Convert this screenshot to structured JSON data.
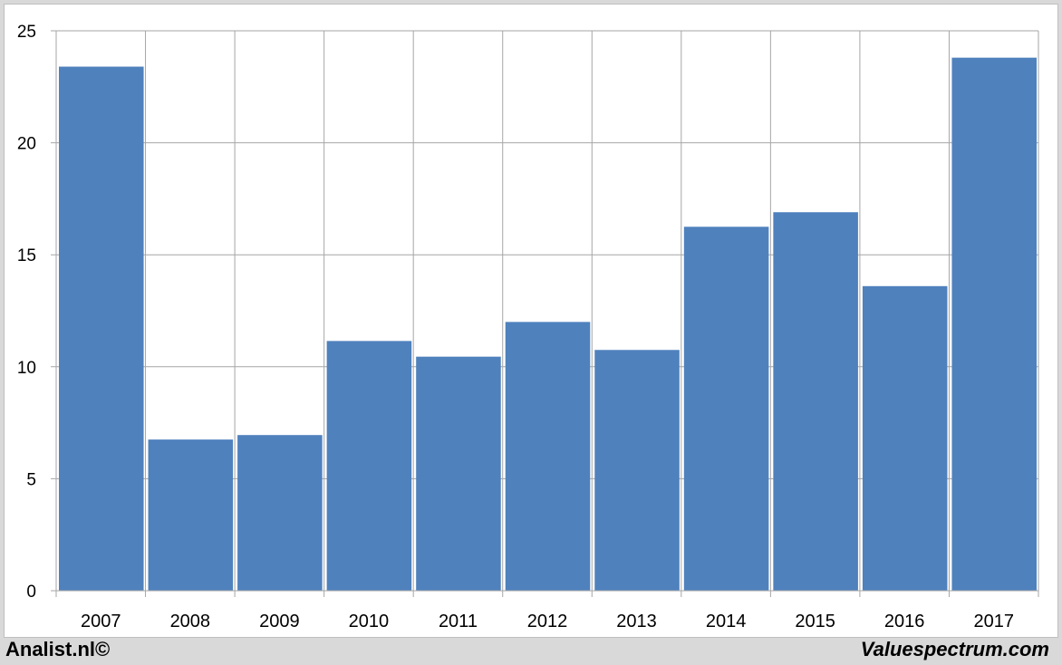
{
  "chart_data": {
    "type": "bar",
    "categories": [
      "2007",
      "2008",
      "2009",
      "2010",
      "2011",
      "2012",
      "2013",
      "2014",
      "2015",
      "2016",
      "2017"
    ],
    "values": [
      23.4,
      6.75,
      6.95,
      11.15,
      10.45,
      12.0,
      10.75,
      16.25,
      16.9,
      13.6,
      23.8
    ],
    "title": "",
    "xlabel": "",
    "ylabel": "",
    "ylim": [
      0,
      25
    ],
    "yticks": [
      "0",
      "5",
      "10",
      "15",
      "20",
      "25"
    ],
    "grid": true,
    "bar_color": "#4f81bd"
  },
  "footer": {
    "left": "Analist.nl©",
    "right": "Valuespectrum.com"
  }
}
